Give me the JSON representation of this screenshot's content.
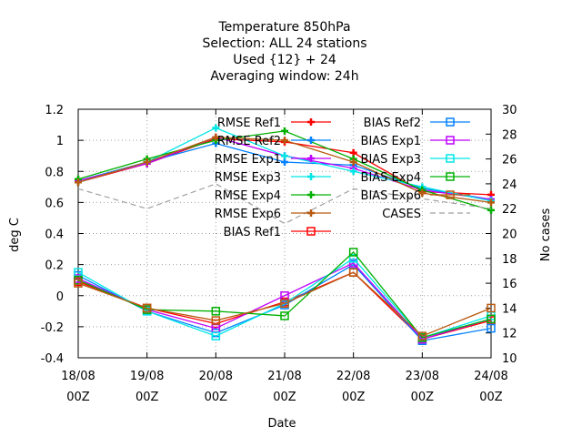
{
  "chart_data": {
    "type": "line",
    "title_lines": [
      "Temperature 850hPa",
      "Selection: ALL      24 stations",
      "Used {12} + 24",
      "Averaging window: 24h"
    ],
    "xlabel": "Date",
    "ylabel": "deg C",
    "y2label": "No cases",
    "categories": [
      {
        "top": "18/08",
        "bottom": "00Z"
      },
      {
        "top": "19/08",
        "bottom": "00Z"
      },
      {
        "top": "20/08",
        "bottom": "00Z"
      },
      {
        "top": "21/08",
        "bottom": "00Z"
      },
      {
        "top": "22/08",
        "bottom": "00Z"
      },
      {
        "top": "23/08",
        "bottom": "00Z"
      },
      {
        "top": "24/08",
        "bottom": "00Z"
      }
    ],
    "ylim": [
      -0.4,
      1.2
    ],
    "yticks": [
      "-0.4",
      "-0.2",
      "0",
      "0.2",
      "0.4",
      "0.6",
      "0.8",
      "1",
      "1.2"
    ],
    "y2lim": [
      10,
      30
    ],
    "y2ticks": [
      "10",
      "12",
      "14",
      "16",
      "18",
      "20",
      "22",
      "24",
      "26",
      "28",
      "30"
    ],
    "grid": true,
    "legend_placement": "top-right inside",
    "series": [
      {
        "name": "RMSE Ref1",
        "color": "#ff0000",
        "marker": "plus",
        "axis": "y",
        "values": [
          0.73,
          0.85,
          1.01,
          0.99,
          0.92,
          0.67,
          0.65
        ]
      },
      {
        "name": "RMSE Ref2",
        "color": "#0080ff",
        "marker": "plus",
        "axis": "y",
        "values": [
          0.74,
          0.86,
          0.98,
          0.86,
          0.84,
          0.69,
          0.62
        ]
      },
      {
        "name": "RMSE Exp1",
        "color": "#bf00ff",
        "marker": "plus",
        "axis": "y",
        "values": [
          0.74,
          0.85,
          1.02,
          0.9,
          0.82,
          0.68,
          0.62
        ]
      },
      {
        "name": "RMSE Exp3",
        "color": "#00e6e6",
        "marker": "plus",
        "axis": "y",
        "values": [
          0.73,
          0.86,
          1.08,
          0.9,
          0.8,
          0.7,
          0.61
        ]
      },
      {
        "name": "RMSE Exp4",
        "color": "#00b000",
        "marker": "plus",
        "axis": "y",
        "values": [
          0.75,
          0.88,
          1.0,
          1.06,
          0.88,
          0.68,
          0.55
        ]
      },
      {
        "name": "RMSE Exp6",
        "color": "#b85a10",
        "marker": "plus",
        "axis": "y",
        "values": [
          0.73,
          0.86,
          1.02,
          1.0,
          0.86,
          0.66,
          0.6
        ]
      },
      {
        "name": "BIAS Ref1",
        "color": "#ff0000",
        "marker": "square",
        "axis": "y",
        "values": [
          0.09,
          -0.08,
          -0.18,
          -0.04,
          0.15,
          -0.28,
          -0.16
        ]
      },
      {
        "name": "BIAS Ref2",
        "color": "#0080ff",
        "marker": "square",
        "axis": "y",
        "values": [
          0.13,
          -0.1,
          -0.24,
          -0.06,
          0.2,
          -0.29,
          -0.21
        ]
      },
      {
        "name": "BIAS Exp1",
        "color": "#bf00ff",
        "marker": "square",
        "axis": "y",
        "values": [
          0.11,
          -0.09,
          -0.21,
          0.0,
          0.21,
          -0.28,
          -0.15
        ]
      },
      {
        "name": "BIAS Exp3",
        "color": "#00e6e6",
        "marker": "square",
        "axis": "y",
        "values": [
          0.15,
          -0.1,
          -0.26,
          -0.05,
          0.24,
          -0.27,
          -0.13
        ]
      },
      {
        "name": "BIAS Exp4",
        "color": "#00b000",
        "marker": "square",
        "axis": "y",
        "values": [
          0.1,
          -0.09,
          -0.1,
          -0.13,
          0.28,
          -0.27,
          -0.15
        ]
      },
      {
        "name": "BIAS Exp6",
        "color": "#b85a10",
        "marker": "square",
        "axis": "y",
        "values": [
          0.08,
          -0.08,
          -0.16,
          -0.05,
          0.15,
          -0.26,
          -0.08
        ]
      },
      {
        "name": "CASES",
        "color": "#a0a0a0",
        "marker": "none",
        "dashed": true,
        "axis": "y2",
        "values": [
          23.6,
          22.0,
          24.0,
          20.8,
          23.6,
          22.8,
          22.0
        ]
      }
    ]
  }
}
